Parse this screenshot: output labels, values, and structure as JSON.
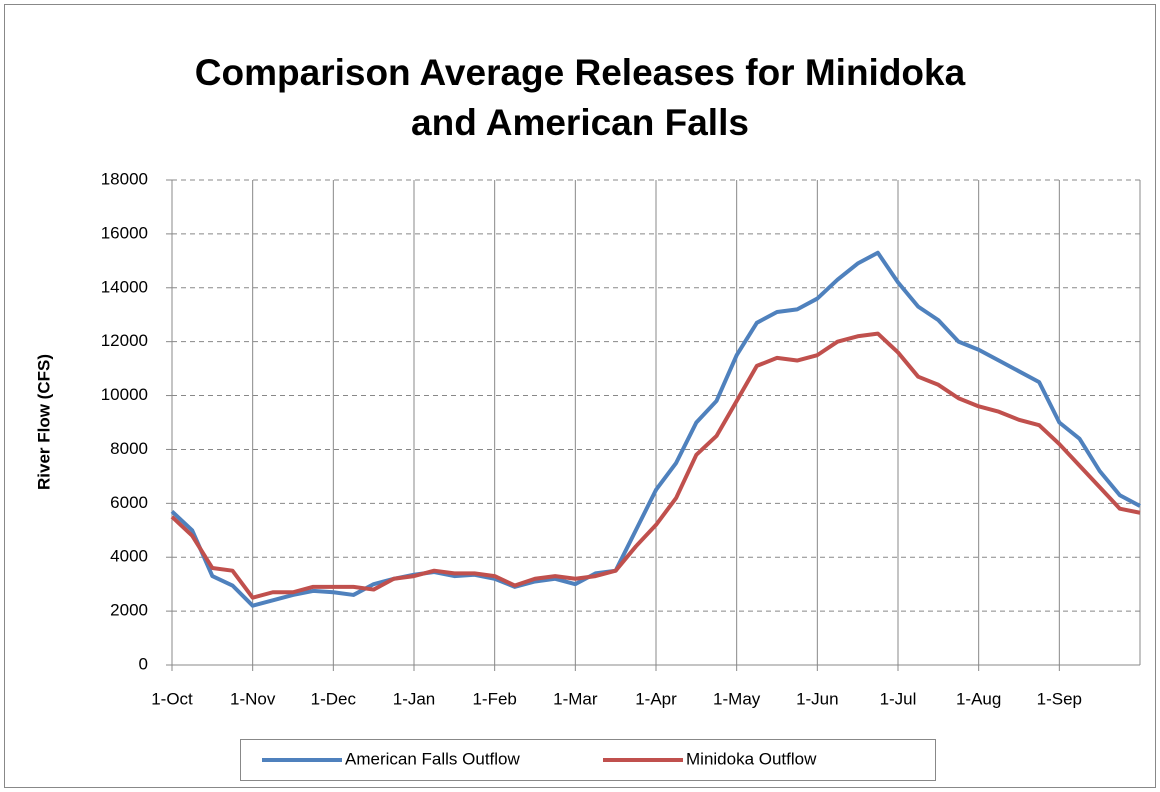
{
  "chart_data": {
    "type": "line",
    "title": [
      "Comparison Average Releases for Minidoka",
      "and American Falls"
    ],
    "y_label": "River Flow (CFS)",
    "categories": [
      "1-Oct",
      null,
      null,
      null,
      "1-Nov",
      null,
      null,
      null,
      "1-Dec",
      null,
      null,
      null,
      "1-Jan",
      null,
      null,
      null,
      "1-Feb",
      null,
      null,
      null,
      "1-Mar",
      null,
      null,
      null,
      "1-Apr",
      null,
      null,
      null,
      "1-May",
      null,
      null,
      null,
      "1-Jun",
      null,
      null,
      null,
      "1-Jul",
      null,
      null,
      null,
      "1-Aug",
      null,
      null,
      null,
      "1-Sep",
      null,
      null,
      null,
      null
    ],
    "series": [
      {
        "name": "American Falls Outflow",
        "color": "#4f81bd",
        "values": [
          5700,
          5000,
          3300,
          2950,
          2200,
          2400,
          2600,
          2750,
          2700,
          2600,
          3000,
          3200,
          3350,
          3450,
          3300,
          3350,
          3200,
          2900,
          3100,
          3200,
          3000,
          3400,
          3500,
          5000,
          6500,
          7500,
          9000,
          9800,
          11500,
          12700,
          13100,
          13200,
          13600,
          14300,
          14900,
          15300,
          14200,
          13300,
          12800,
          12000,
          11700,
          11300,
          10900,
          10500,
          9000,
          8400,
          7200,
          6300,
          5900
        ]
      },
      {
        "name": "Minidoka Outflow",
        "color": "#c0504d",
        "values": [
          5500,
          4800,
          3600,
          3500,
          2500,
          2700,
          2700,
          2900,
          2900,
          2900,
          2800,
          3200,
          3300,
          3500,
          3400,
          3400,
          3300,
          2950,
          3200,
          3300,
          3200,
          3300,
          3500,
          4400,
          5200,
          6200,
          7800,
          8500,
          9800,
          11100,
          11400,
          11300,
          11500,
          12000,
          12200,
          12300,
          11600,
          10700,
          10400,
          9900,
          9600,
          9400,
          9100,
          8900,
          8200,
          7400,
          6600,
          5800,
          5650
        ]
      }
    ],
    "ylim": [
      0,
      18000
    ],
    "yticks": [
      0,
      2000,
      4000,
      6000,
      8000,
      10000,
      12000,
      14000,
      16000,
      18000
    ],
    "grid": true,
    "legend": "bottom"
  }
}
